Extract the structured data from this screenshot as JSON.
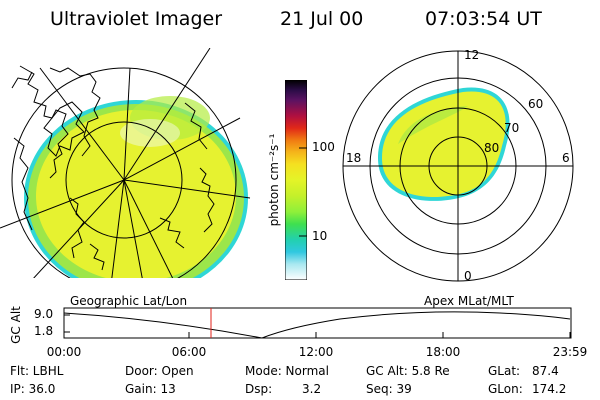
{
  "header": {
    "title": "Ultraviolet Imager",
    "date": "21 Jul 00",
    "time": "07:03:54 UT"
  },
  "colorbar": {
    "unit_label": "photon cm⁻²s⁻¹",
    "tick_labels": [
      "100",
      "10"
    ],
    "colors": [
      "#000000",
      "#1f0a3a",
      "#3a1060",
      "#6e1260",
      "#c8102a",
      "#e2331a",
      "#f07a12",
      "#f3a51a",
      "#f5d020",
      "#e8f020",
      "#c8f02a",
      "#8ef03a",
      "#3fe04f",
      "#22d0a0",
      "#20c6d0",
      "#6ee0e8",
      "#c4f0f4",
      "#ffffff"
    ]
  },
  "polar_plot": {
    "labels": {
      "top": "12",
      "bottom": "0",
      "left": "18",
      "right": "6",
      "lat_60": "60",
      "lat_70": "70",
      "lat_80": "80"
    }
  },
  "timeline": {
    "left_label": "Geographic Lat/Lon",
    "right_label": "Apex MLat/MLT",
    "y_axis_label": "GC Alt",
    "y_ticks": [
      "9.0",
      "1.8"
    ],
    "x_ticks": [
      "00:00",
      "06:00",
      "12:00",
      "18:00",
      "23:59"
    ]
  },
  "info": {
    "filt": "Flt: LBHL",
    "ip": "IP: 36.0",
    "door": "Door: Open",
    "gain": "Gain: 13",
    "mode": "Mode: Normal",
    "dsp_label": "Dsp:",
    "dsp_value": "3.2",
    "gc_alt": "GC Alt: 5.8 Re",
    "seq": "Seq: 39",
    "glat_label": "GLat:",
    "glat_value": "87.4",
    "glon_label": "GLon:",
    "glon_value": "174.2"
  },
  "colors": {
    "image_fill": "#e6f230",
    "image_green": "#9ce64a",
    "image_edge": "#2fd6d6",
    "marker_red": "#e0201a"
  }
}
